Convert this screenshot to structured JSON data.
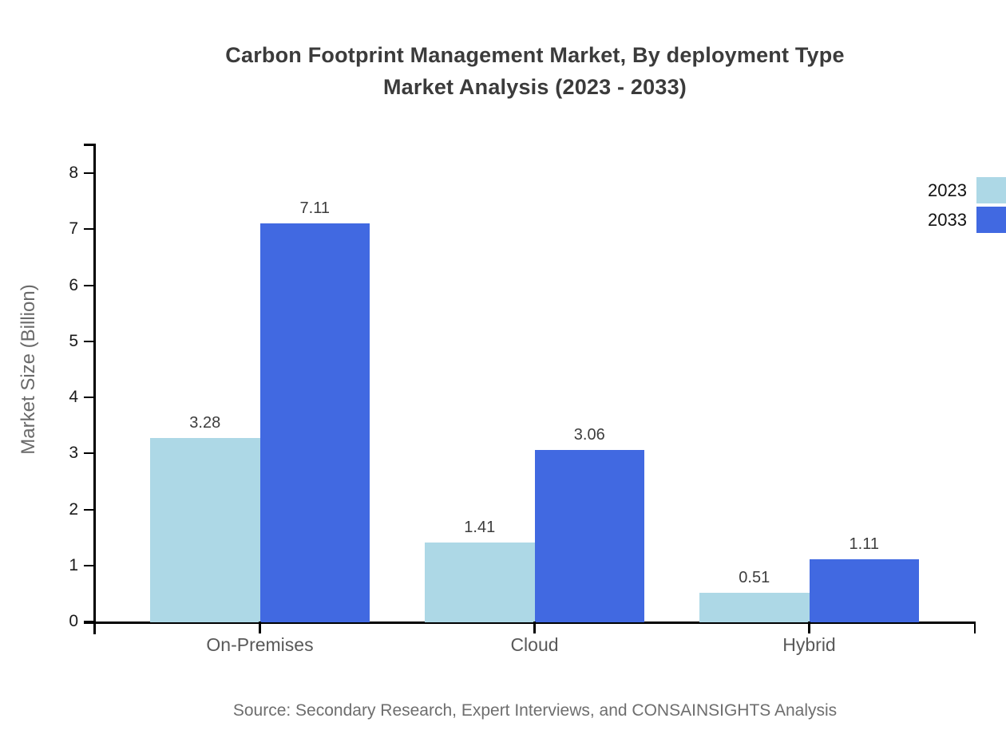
{
  "header": {
    "title_display": "Carbon Footprint Management Market, By deployment Type\nMarket Analysis (2023 - 2033)"
  },
  "chart_data": {
    "type": "bar",
    "title": "Carbon Footprint Management Market, By deployment Type Market Analysis (2023 - 2033)",
    "categories": [
      "On-Premises",
      "Cloud",
      "Hybrid"
    ],
    "series": [
      {
        "name": "2023",
        "color": "#ADD8E6",
        "values": [
          3.28,
          1.41,
          0.51
        ]
      },
      {
        "name": "2033",
        "color": "#4169E1",
        "values": [
          7.11,
          3.06,
          1.11
        ]
      }
    ],
    "xlabel": "",
    "ylabel": "Market Size (Billion)",
    "ylim": [
      0,
      8.5
    ],
    "yticks": [
      0,
      1,
      2,
      3,
      4,
      5,
      6,
      7,
      8
    ],
    "grid": false,
    "legend_position": "upper-right-outside",
    "value_label_decimals": 2
  },
  "footer": {
    "source": "Source: Secondary Research, Expert Interviews, and CONSAINSIGHTS Analysis"
  },
  "style": {
    "axis_color": "#000000",
    "title_color": "#3b3b3b",
    "value_label_color": "#3d3d3d",
    "category_label_color": "#595959",
    "source_color": "#6e6e6e",
    "series_colors": [
      "#ADD8E6",
      "#4169E1"
    ]
  }
}
